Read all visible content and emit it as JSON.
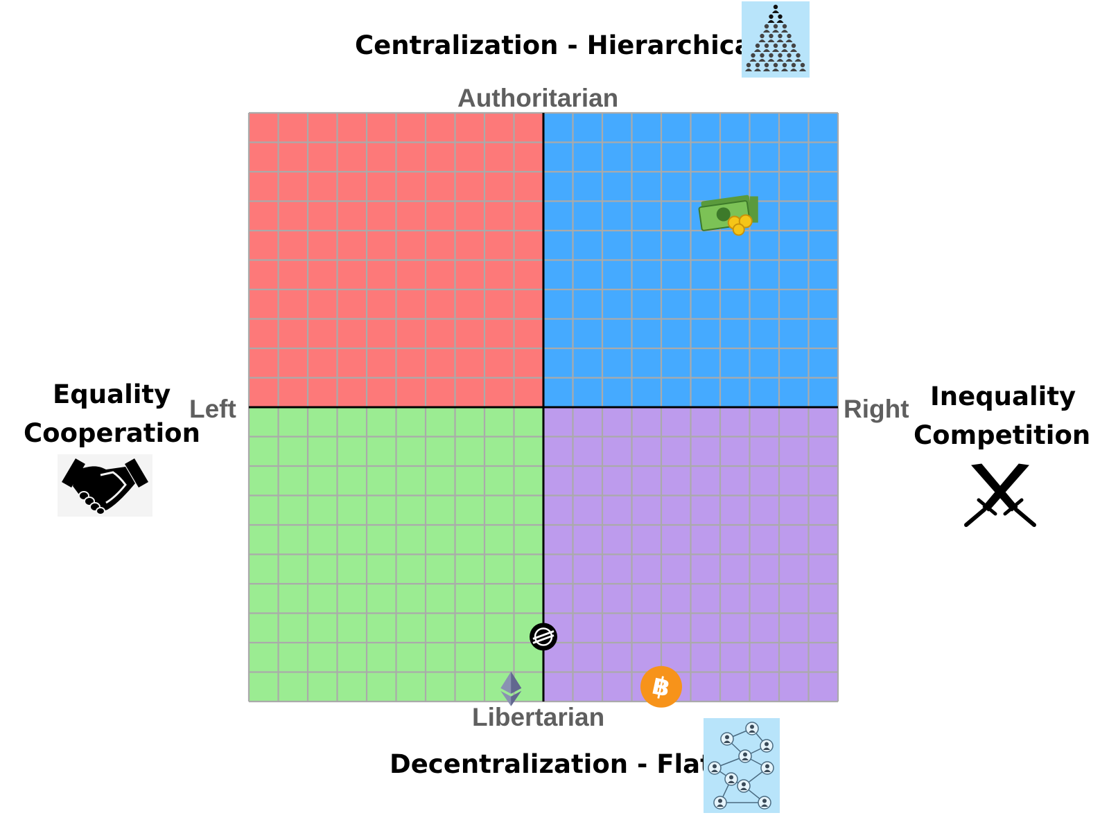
{
  "titles": {
    "top": "Centralization - Hierarchical",
    "bottom": "Decentralization - Flat",
    "left_line1": "Equality",
    "left_line2": "Cooperation",
    "right_line1": "Inequality",
    "right_line2": "Competition"
  },
  "axis_labels": {
    "top": "Authoritarian",
    "bottom": "Libertarian",
    "left": "Left",
    "right": "Right"
  },
  "quadrant_colors": {
    "top_left": "#fd7979",
    "top_right": "#45aaff",
    "bottom_left": "#9bec92",
    "bottom_right": "#bd9bed",
    "grid_line": "#aaaaaa",
    "axis_line": "#000000"
  },
  "grid": {
    "cells_per_side": 20,
    "x_range": [
      -10,
      10
    ],
    "y_range": [
      -10,
      10
    ]
  },
  "markers": [
    {
      "icon": "money-stack-icon",
      "x": 6.3,
      "y": 6.6
    },
    {
      "icon": "stellar-logo-icon",
      "x": 0.0,
      "y": -7.8
    },
    {
      "icon": "ethereum-logo-icon",
      "x": -1.1,
      "y": -9.5
    },
    {
      "icon": "bitcoin-logo-icon",
      "x": 4.0,
      "y": -9.5
    }
  ],
  "icons": {
    "top": "hierarchy-pyramid-icon",
    "bottom": "network-nodes-icon",
    "left": "handshake-icon",
    "right": "crossed-swords-icon"
  }
}
